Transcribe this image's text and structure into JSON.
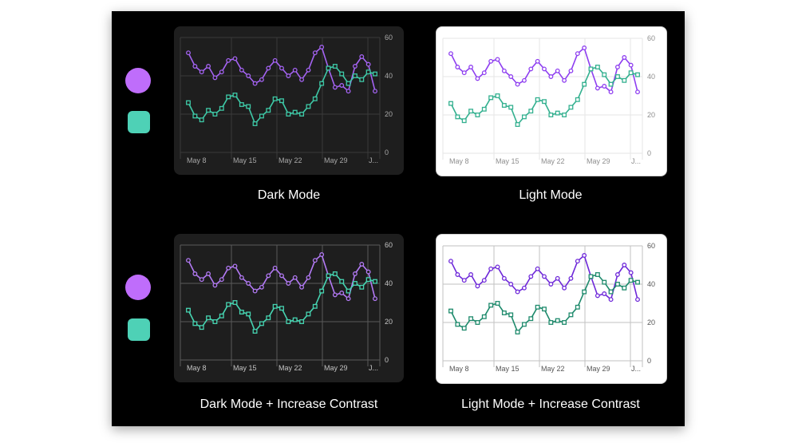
{
  "colors": {
    "purple": "#a463f2",
    "purple_contrast": "#6e28d9",
    "teal": "#3ec9a7",
    "teal_contrast": "#1e8a6c",
    "legend_purple": "#bf6dfb",
    "legend_teal": "#4ed1b6"
  },
  "legend": [
    {
      "marker": "circle"
    },
    {
      "marker": "square"
    }
  ],
  "captions": {
    "dark": "Dark Mode",
    "light": "Light Mode",
    "dark_contrast": "Dark Mode + Increase Contrast",
    "light_contrast": "Light Mode + Increase Contrast"
  },
  "chart_data": {
    "type": "line",
    "x_ticks": [
      "May 8",
      "May 15",
      "May 22",
      "May 29",
      "J..."
    ],
    "y_ticks": [
      0,
      20,
      40,
      60
    ],
    "ylim": [
      0,
      60
    ],
    "grid": true,
    "series": [
      {
        "marker": "circle",
        "values": [
          52,
          45,
          42,
          45,
          39,
          42,
          48,
          49,
          43,
          40,
          36,
          38,
          44,
          48,
          44,
          40,
          43,
          38,
          43,
          52,
          55,
          44,
          34,
          35,
          32,
          45,
          50,
          46,
          32
        ]
      },
      {
        "marker": "square",
        "values": [
          26,
          19,
          17,
          22,
          20,
          23,
          29,
          30,
          25,
          24,
          15,
          19,
          22,
          28,
          27,
          20,
          21,
          20,
          24,
          28,
          36,
          44,
          45,
          41,
          36,
          40,
          38,
          42,
          41
        ]
      }
    ]
  },
  "panels": [
    {
      "name": "dark",
      "bg": "#1e1e1e",
      "grid": "#3a3a3a",
      "tick": "#a8a8a8",
      "purple": "#a463f2",
      "teal": "#3ec9a7",
      "marker_fill": "#1e1e1e"
    },
    {
      "name": "light",
      "bg": "#ffffff",
      "grid": "#e5e5e5",
      "tick": "#8e8e8e",
      "purple": "#8e3ef0",
      "teal": "#33b08f",
      "marker_fill": "#ffffff"
    },
    {
      "name": "dark-contrast",
      "bg": "#1e1e1e",
      "grid": "#5a5a5a",
      "tick": "#c4c4c4",
      "purple": "#b37af5",
      "teal": "#46d4b1",
      "marker_fill": "#1e1e1e"
    },
    {
      "name": "light-contrast",
      "bg": "#ffffff",
      "grid": "#c2c2c2",
      "tick": "#555555",
      "purple": "#6e28d9",
      "teal": "#1e8a6c",
      "marker_fill": "#ffffff"
    }
  ]
}
